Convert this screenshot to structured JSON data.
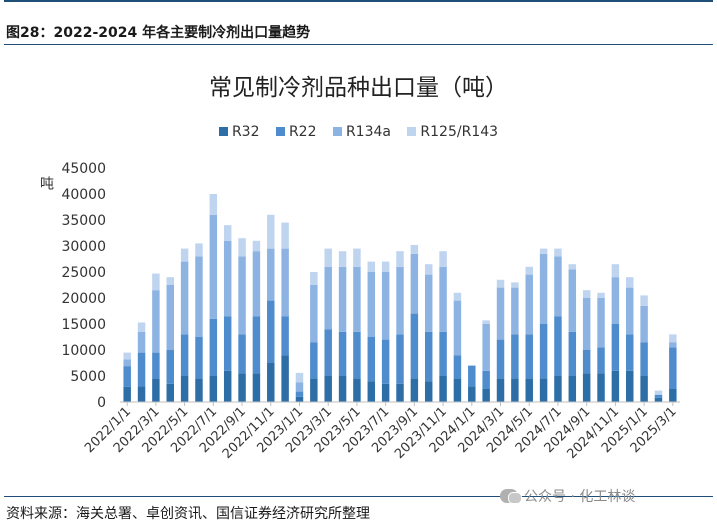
{
  "figure": {
    "caption": "图28：2022-2024 年各主要制冷剂出口量趋势",
    "source": "资料来源：海关总署、卓创资讯、国信证券经济研究所整理",
    "watermark": "公众号 · 化工林谈",
    "watermark_icon": "wechat-icon"
  },
  "chart_data": {
    "type": "bar",
    "stacked": true,
    "title": "常见制冷剂品种出口量（吨）",
    "ylabel": "吨",
    "xlabel": "",
    "ylim": [
      0,
      45000
    ],
    "yticks": [
      0,
      5000,
      10000,
      15000,
      20000,
      25000,
      30000,
      35000,
      40000,
      45000
    ],
    "grid": false,
    "legend_position": "top-center",
    "colors": {
      "R32": "#2e6ea6",
      "R22": "#4f8ccd",
      "R134a": "#8db3e2",
      "R125/R143": "#bfd4ef",
      "axis": "#bfbfbf"
    },
    "x_tick_labels": [
      "2022/1/1",
      "2022/3/1",
      "2022/5/1",
      "2022/7/1",
      "2022/9/1",
      "2022/11/1",
      "2023/1/1",
      "2023/3/1",
      "2023/5/1",
      "2023/7/1",
      "2023/9/1",
      "2023/11/1",
      "2024/1/1",
      "2024/3/1",
      "2024/5/1",
      "2024/7/1",
      "2024/9/1",
      "2024/11/1",
      "2025/1/1",
      "2025/3/1"
    ],
    "categories": [
      "2022/1",
      "2022/2",
      "2022/3",
      "2022/4",
      "2022/5",
      "2022/6",
      "2022/7",
      "2022/8",
      "2022/9",
      "2022/10",
      "2022/11",
      "2022/12",
      "2023/1",
      "2023/2",
      "2023/3",
      "2023/4",
      "2023/5",
      "2023/6",
      "2023/7",
      "2023/8",
      "2023/9",
      "2023/10",
      "2023/11",
      "2023/12",
      "2024/1",
      "2024/2",
      "2024/3",
      "2024/4",
      "2024/5",
      "2024/6",
      "2024/7",
      "2024/8",
      "2024/9",
      "2024/10",
      "2024/11",
      "2024/12",
      "2025/1",
      "2025/2",
      "2025/3"
    ],
    "series": [
      {
        "name": "R32",
        "values": [
          2900,
          3000,
          4500,
          3500,
          5000,
          4500,
          5000,
          6000,
          5500,
          5500,
          7500,
          9000,
          1000,
          4500,
          5000,
          5000,
          4500,
          4000,
          3500,
          3500,
          4500,
          4000,
          5000,
          4500,
          3000,
          2500,
          4500,
          4500,
          4500,
          4500,
          5000,
          5000,
          5500,
          5500,
          6000,
          6000,
          5000,
          800,
          2500
        ]
      },
      {
        "name": "R22",
        "values": [
          4000,
          6500,
          5000,
          6500,
          8000,
          8000,
          11000,
          10500,
          7500,
          11000,
          12000,
          7500,
          1000,
          7000,
          9000,
          8500,
          9000,
          8500,
          8500,
          9500,
          12500,
          9500,
          8500,
          4500,
          4000,
          3500,
          7500,
          8500,
          8500,
          10500,
          11500,
          8500,
          4500,
          5000,
          9000,
          7000,
          6500,
          600,
          8000
        ]
      },
      {
        "name": "R134a",
        "values": [
          1300,
          4000,
          12000,
          12500,
          14000,
          15500,
          20000,
          14500,
          15000,
          12500,
          10000,
          13000,
          1800,
          11000,
          12000,
          12500,
          12500,
          12500,
          13000,
          13000,
          11500,
          11000,
          12500,
          10500,
          0,
          9000,
          10000,
          9000,
          11500,
          13500,
          11500,
          12000,
          10000,
          9500,
          9000,
          9000,
          7000,
          0,
          1000
        ]
      },
      {
        "name": "R125/R143",
        "values": [
          1300,
          1800,
          3200,
          1500,
          2500,
          2500,
          4000,
          3000,
          3500,
          2000,
          6500,
          5000,
          1800,
          2500,
          3500,
          3000,
          3500,
          2000,
          2000,
          3000,
          1700,
          2000,
          3000,
          1500,
          0,
          700,
          1500,
          1000,
          1500,
          1000,
          1500,
          1000,
          1500,
          1000,
          2500,
          2000,
          2000,
          800,
          1500
        ]
      }
    ]
  }
}
